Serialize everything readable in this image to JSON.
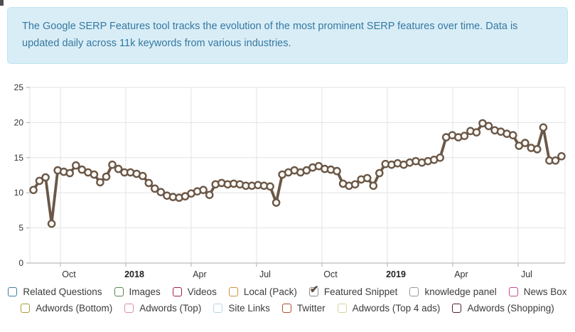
{
  "banner": {
    "text": "The Google SERP Features tool tracks the evolution of the most prominent SERP features over time. Data is updated daily across 11k keywords from various industries.",
    "bg_color": "#d9edf7",
    "border_color": "#bce8f1",
    "text_color": "#3579a0"
  },
  "chart_data": {
    "type": "line",
    "title": "",
    "xlabel": "",
    "ylabel": "",
    "ylim": [
      0,
      25
    ],
    "y_ticks": [
      0,
      5,
      10,
      15,
      20,
      25
    ],
    "grid": true,
    "legend_position": "bottom",
    "x_ticks": [
      {
        "label": "Oct",
        "bold": false,
        "pos": 0.0571
      },
      {
        "label": "2018",
        "bold": true,
        "pos": 0.1793
      },
      {
        "label": "Apr",
        "bold": false,
        "pos": 0.3014
      },
      {
        "label": "Jul",
        "bold": false,
        "pos": 0.4236
      },
      {
        "label": "Oct",
        "bold": false,
        "pos": 0.5458
      },
      {
        "label": "2019",
        "bold": true,
        "pos": 0.668
      },
      {
        "label": "Apr",
        "bold": false,
        "pos": 0.7901
      },
      {
        "label": "Jul",
        "bold": false,
        "pos": 0.9123
      }
    ],
    "series": [
      {
        "name": "Featured Snippet",
        "color": "#6b5747",
        "marker_fill": "#fdfbf7",
        "values": [
          10.4,
          11.7,
          12.2,
          5.6,
          13.2,
          13.0,
          12.8,
          13.9,
          13.3,
          12.9,
          12.6,
          11.5,
          12.3,
          14.0,
          13.4,
          12.9,
          12.9,
          12.7,
          12.4,
          11.4,
          10.6,
          10.1,
          9.6,
          9.4,
          9.3,
          9.5,
          9.9,
          10.2,
          10.4,
          9.7,
          11.2,
          11.4,
          11.2,
          11.3,
          11.2,
          11.0,
          11.0,
          11.1,
          11.0,
          10.9,
          8.6,
          12.6,
          12.9,
          13.2,
          12.9,
          13.2,
          13.6,
          13.8,
          13.4,
          13.3,
          13.1,
          11.3,
          11.0,
          11.2,
          11.9,
          12.1,
          11.0,
          12.8,
          14.1,
          14.0,
          14.2,
          14.0,
          14.3,
          14.5,
          14.3,
          14.5,
          14.7,
          15.0,
          17.9,
          18.2,
          17.9,
          18.1,
          18.8,
          18.6,
          19.9,
          19.5,
          18.9,
          18.7,
          18.4,
          18.2,
          16.7,
          17.1,
          16.4,
          16.2,
          19.3,
          14.6,
          14.6,
          15.2
        ]
      }
    ]
  },
  "legend": {
    "check_color": "#5d4a3d",
    "rows": [
      [
        {
          "label": "Related Questions",
          "color": "#3d7f9d",
          "checked": false
        },
        {
          "label": "Images",
          "color": "#55864e",
          "checked": false
        },
        {
          "label": "Videos",
          "color": "#a0233f",
          "checked": false
        },
        {
          "label": "Local (Pack)",
          "color": "#d0913a",
          "checked": false
        },
        {
          "label": "Featured Snippet",
          "color": "#8a8a8a",
          "checked": true
        },
        {
          "label": "knowledge panel",
          "color": "#9a9a9a",
          "checked": false
        },
        {
          "label": "News Box",
          "color": "#bf4d92",
          "checked": false
        }
      ],
      [
        {
          "label": "Adwords (Bottom)",
          "color": "#ad9930",
          "checked": false
        },
        {
          "label": "Adwords (Top)",
          "color": "#db8fa4",
          "checked": false
        },
        {
          "label": "Site Links",
          "color": "#b5d6e6",
          "checked": false
        },
        {
          "label": "Twitter",
          "color": "#ab4f2e",
          "checked": false
        },
        {
          "label": "Adwords (Top 4 ads)",
          "color": "#d8d29b",
          "checked": false
        },
        {
          "label": "Adwords (Shopping)",
          "color": "#4f1f2e",
          "checked": false
        }
      ]
    ]
  }
}
